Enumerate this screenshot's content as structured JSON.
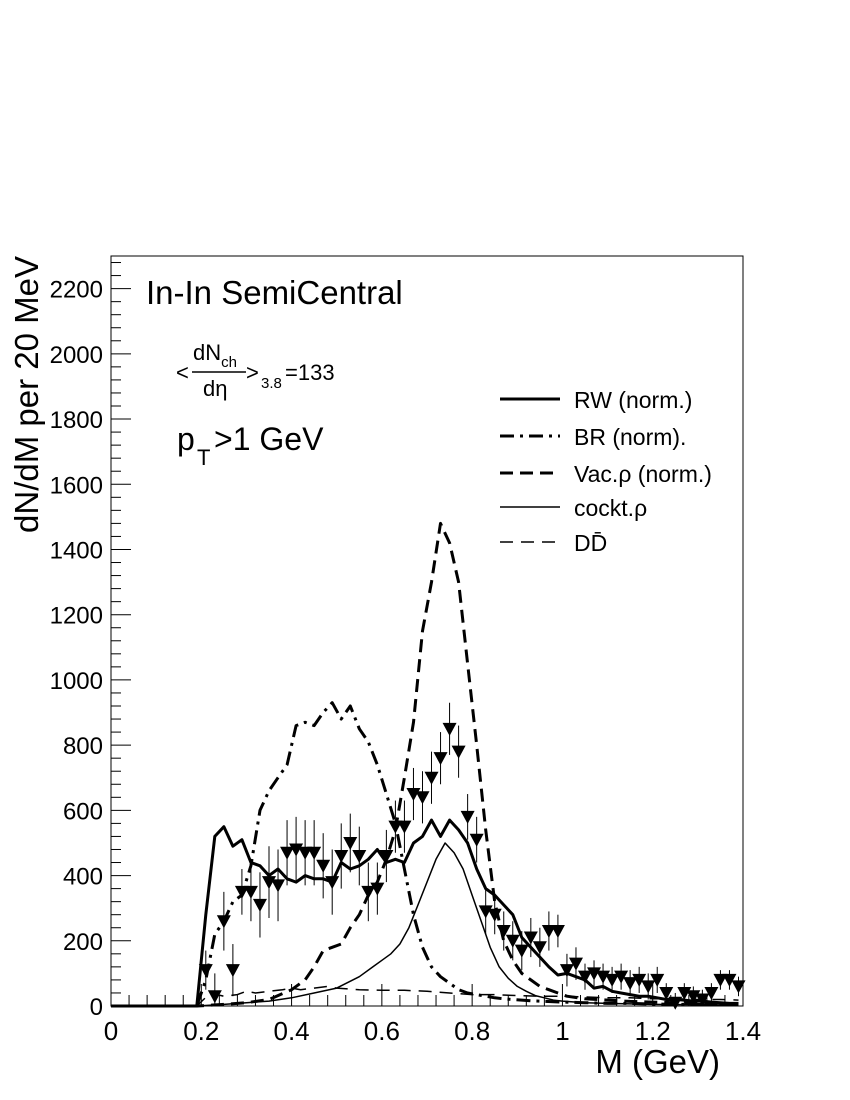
{
  "chart_data": {
    "type": "line",
    "title": "In-In SemiCentral",
    "xlabel": "M (GeV)",
    "ylabel": "dN/dM per 20 MeV",
    "xlim": [
      0,
      1.4
    ],
    "ylim": [
      0,
      2300
    ],
    "grid": false,
    "legend_position": "top-right",
    "x_ticks": [
      0,
      0.2,
      0.4,
      0.6,
      0.8,
      1,
      1.2,
      1.4
    ],
    "x_tick_labels": [
      "0",
      "0.2",
      "0.4",
      "0.6",
      "0.8",
      "1",
      "1.2",
      "1.4"
    ],
    "y_ticks": [
      0,
      200,
      400,
      600,
      800,
      1000,
      1200,
      1400,
      1600,
      1800,
      2000,
      2200
    ],
    "y_tick_labels": [
      "0",
      "200",
      "400",
      "600",
      "800",
      "1000",
      "1200",
      "1400",
      "1600",
      "1800",
      "2000",
      "2200"
    ],
    "annotations": {
      "multiplicity_open": "<",
      "multiplicity_num": "dN",
      "multiplicity_num_sub": "ch",
      "multiplicity_den": "dη",
      "multiplicity_close": ">",
      "multiplicity_sub": "3.8",
      "multiplicity_value": "=133",
      "pt_main": "p",
      "pt_sub": "T",
      "pt_rest": ">1 GeV"
    },
    "legend": [
      {
        "label": "RW (norm.)",
        "style": "thick-solid"
      },
      {
        "label": "BR (norm).",
        "style": "thick-dashdot"
      },
      {
        "label": "Vac.ρ (norm.)",
        "style": "thick-dashed"
      },
      {
        "label": "cockt.ρ",
        "style": "thin-solid"
      },
      {
        "label": "DD̄",
        "style": "thin-dashed"
      }
    ],
    "series": [
      {
        "name": "RW (norm.)",
        "style": "thick-solid",
        "x": [
          0.0,
          0.19,
          0.21,
          0.23,
          0.25,
          0.27,
          0.29,
          0.31,
          0.33,
          0.35,
          0.37,
          0.39,
          0.41,
          0.43,
          0.45,
          0.47,
          0.49,
          0.51,
          0.53,
          0.55,
          0.57,
          0.59,
          0.61,
          0.63,
          0.65,
          0.67,
          0.69,
          0.71,
          0.73,
          0.75,
          0.77,
          0.79,
          0.81,
          0.83,
          0.85,
          0.87,
          0.89,
          0.91,
          0.93,
          0.95,
          0.97,
          0.99,
          1.01,
          1.03,
          1.05,
          1.07,
          1.09,
          1.11,
          1.13,
          1.15,
          1.17,
          1.19,
          1.21,
          1.23,
          1.25,
          1.27,
          1.29,
          1.31,
          1.33,
          1.35,
          1.37,
          1.39
        ],
        "y": [
          0,
          0,
          280,
          520,
          550,
          490,
          510,
          440,
          430,
          400,
          420,
          390,
          380,
          400,
          390,
          390,
          380,
          440,
          420,
          430,
          450,
          480,
          440,
          450,
          440,
          500,
          520,
          570,
          520,
          570,
          540,
          500,
          420,
          360,
          340,
          310,
          280,
          210,
          180,
          150,
          120,
          95,
          100,
          90,
          80,
          55,
          60,
          45,
          40,
          35,
          30,
          30,
          25,
          20,
          20,
          18,
          15,
          15,
          12,
          10,
          8,
          8
        ]
      },
      {
        "name": "BR (norm).",
        "style": "thick-dashdot",
        "x": [
          0.0,
          0.19,
          0.21,
          0.23,
          0.25,
          0.27,
          0.29,
          0.31,
          0.33,
          0.35,
          0.37,
          0.39,
          0.41,
          0.43,
          0.45,
          0.47,
          0.49,
          0.51,
          0.53,
          0.55,
          0.57,
          0.59,
          0.61,
          0.63,
          0.65,
          0.67,
          0.69,
          0.71,
          0.73,
          0.75,
          0.77,
          0.79,
          0.81,
          0.83,
          0.85,
          0.87,
          0.89,
          0.91,
          0.93,
          0.95,
          1.0,
          1.05,
          1.1,
          1.15,
          1.2,
          1.25,
          1.3,
          1.35,
          1.39
        ],
        "y": [
          0,
          0,
          80,
          220,
          260,
          320,
          340,
          430,
          600,
          660,
          700,
          740,
          860,
          870,
          860,
          900,
          930,
          880,
          920,
          850,
          810,
          740,
          650,
          560,
          420,
          280,
          180,
          120,
          90,
          70,
          50,
          40,
          35,
          30,
          25,
          22,
          20,
          18,
          16,
          15,
          12,
          10,
          8,
          8,
          6,
          5,
          5,
          4,
          4
        ]
      },
      {
        "name": "Vac.ρ (norm.)",
        "style": "thick-dashed",
        "x": [
          0.0,
          0.19,
          0.25,
          0.3,
          0.35,
          0.4,
          0.43,
          0.45,
          0.47,
          0.49,
          0.51,
          0.53,
          0.55,
          0.57,
          0.59,
          0.61,
          0.63,
          0.65,
          0.67,
          0.69,
          0.71,
          0.73,
          0.75,
          0.77,
          0.79,
          0.81,
          0.83,
          0.85,
          0.87,
          0.89,
          0.91,
          0.93,
          0.95,
          0.97,
          0.99,
          1.01,
          1.05,
          1.1,
          1.15,
          1.2,
          1.25,
          1.3,
          1.35,
          1.39
        ],
        "y": [
          0,
          0,
          5,
          10,
          20,
          50,
          80,
          120,
          170,
          180,
          190,
          240,
          280,
          340,
          380,
          450,
          540,
          700,
          870,
          1150,
          1300,
          1480,
          1420,
          1300,
          1050,
          800,
          540,
          320,
          200,
          140,
          100,
          80,
          60,
          50,
          40,
          30,
          22,
          18,
          14,
          12,
          10,
          8,
          6,
          6
        ]
      },
      {
        "name": "cockt.ρ",
        "style": "thin-solid",
        "x": [
          0.0,
          0.19,
          0.25,
          0.3,
          0.35,
          0.4,
          0.45,
          0.5,
          0.55,
          0.58,
          0.6,
          0.62,
          0.64,
          0.66,
          0.68,
          0.7,
          0.72,
          0.74,
          0.76,
          0.78,
          0.8,
          0.82,
          0.84,
          0.86,
          0.88,
          0.9,
          0.92,
          0.94,
          0.96,
          0.98,
          1.0,
          1.05,
          1.1,
          1.2,
          1.3,
          1.39
        ],
        "y": [
          0,
          0,
          5,
          10,
          15,
          25,
          40,
          55,
          90,
          120,
          140,
          160,
          190,
          240,
          310,
          380,
          450,
          500,
          470,
          420,
          340,
          260,
          180,
          120,
          85,
          60,
          45,
          32,
          25,
          18,
          15,
          10,
          8,
          5,
          4,
          3
        ]
      },
      {
        "name": "DD̄",
        "style": "thin-dashed",
        "x": [
          0.0,
          0.19,
          0.22,
          0.25,
          0.28,
          0.3,
          0.32,
          0.35,
          0.38,
          0.4,
          0.42,
          0.45,
          0.48,
          0.5,
          0.55,
          0.6,
          0.65,
          0.7,
          0.75,
          0.8,
          0.85,
          0.9,
          0.95,
          1.0,
          1.05,
          1.1,
          1.15,
          1.2,
          1.25,
          1.3,
          1.35,
          1.39
        ],
        "y": [
          0,
          0,
          40,
          30,
          35,
          45,
          40,
          45,
          50,
          55,
          50,
          55,
          60,
          55,
          50,
          48,
          48,
          45,
          40,
          35,
          35,
          32,
          30,
          30,
          28,
          25,
          25,
          22,
          22,
          20,
          20,
          18
        ]
      }
    ],
    "data_points": {
      "name": "data",
      "marker": "filled-down-triangle",
      "x": [
        0.21,
        0.23,
        0.25,
        0.27,
        0.29,
        0.31,
        0.33,
        0.35,
        0.37,
        0.39,
        0.41,
        0.43,
        0.45,
        0.47,
        0.49,
        0.51,
        0.53,
        0.55,
        0.57,
        0.59,
        0.61,
        0.63,
        0.65,
        0.67,
        0.69,
        0.71,
        0.73,
        0.75,
        0.77,
        0.79,
        0.81,
        0.83,
        0.85,
        0.87,
        0.89,
        0.91,
        0.93,
        0.95,
        0.97,
        0.99,
        1.01,
        1.03,
        1.05,
        1.07,
        1.09,
        1.11,
        1.13,
        1.15,
        1.17,
        1.19,
        1.21,
        1.23,
        1.25,
        1.27,
        1.29,
        1.31,
        1.33,
        1.35,
        1.37,
        1.39
      ],
      "y": [
        110,
        30,
        260,
        110,
        350,
        350,
        310,
        380,
        370,
        470,
        480,
        470,
        470,
        430,
        380,
        460,
        500,
        460,
        350,
        360,
        460,
        550,
        550,
        650,
        640,
        700,
        760,
        850,
        780,
        580,
        510,
        290,
        280,
        230,
        200,
        170,
        210,
        180,
        230,
        230,
        110,
        130,
        90,
        100,
        90,
        80,
        90,
        70,
        80,
        60,
        80,
        40,
        10,
        40,
        30,
        20,
        40,
        80,
        80,
        60
      ],
      "err": [
        60,
        70,
        90,
        80,
        70,
        90,
        100,
        110,
        110,
        100,
        100,
        100,
        100,
        100,
        100,
        100,
        90,
        90,
        90,
        80,
        80,
        80,
        80,
        80,
        80,
        80,
        80,
        80,
        80,
        70,
        70,
        70,
        60,
        60,
        60,
        60,
        60,
        60,
        60,
        50,
        50,
        50,
        40,
        40,
        40,
        40,
        40,
        40,
        40,
        40,
        40,
        30,
        30,
        30,
        30,
        30,
        30,
        30,
        30,
        30
      ]
    }
  }
}
